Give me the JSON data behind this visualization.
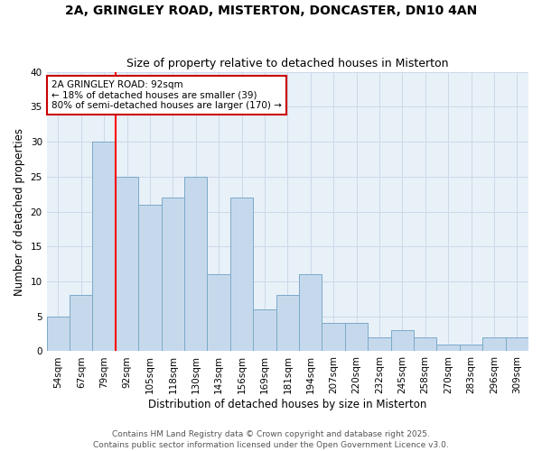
{
  "title": "2A, GRINGLEY ROAD, MISTERTON, DONCASTER, DN10 4AN",
  "subtitle": "Size of property relative to detached houses in Misterton",
  "xlabel": "Distribution of detached houses by size in Misterton",
  "ylabel": "Number of detached properties",
  "categories": [
    "54sqm",
    "67sqm",
    "79sqm",
    "92sqm",
    "105sqm",
    "118sqm",
    "130sqm",
    "143sqm",
    "156sqm",
    "169sqm",
    "181sqm",
    "194sqm",
    "207sqm",
    "220sqm",
    "232sqm",
    "245sqm",
    "258sqm",
    "270sqm",
    "283sqm",
    "296sqm",
    "309sqm"
  ],
  "values": [
    5,
    8,
    30,
    25,
    21,
    22,
    25,
    11,
    22,
    6,
    8,
    11,
    4,
    4,
    2,
    3,
    2,
    1,
    1,
    2,
    2
  ],
  "bar_color": "#c6d9ec",
  "bar_edge_color": "#7aaac8",
  "red_line_index": 3,
  "annotation_text": "2A GRINGLEY ROAD: 92sqm\n← 18% of detached houses are smaller (39)\n80% of semi-detached houses are larger (170) →",
  "annotation_box_color": "#ffffff",
  "annotation_box_edge_color": "#cc0000",
  "ylim": [
    0,
    40
  ],
  "yticks": [
    0,
    5,
    10,
    15,
    20,
    25,
    30,
    35,
    40
  ],
  "grid_color": "#ccd9e8",
  "background_color": "#e8f0f8",
  "footer_text": "Contains HM Land Registry data © Crown copyright and database right 2025.\nContains public sector information licensed under the Open Government Licence v3.0.",
  "title_fontsize": 10,
  "subtitle_fontsize": 9,
  "axis_label_fontsize": 8.5,
  "tick_fontsize": 7.5,
  "annotation_fontsize": 7.5,
  "footer_fontsize": 6.5
}
